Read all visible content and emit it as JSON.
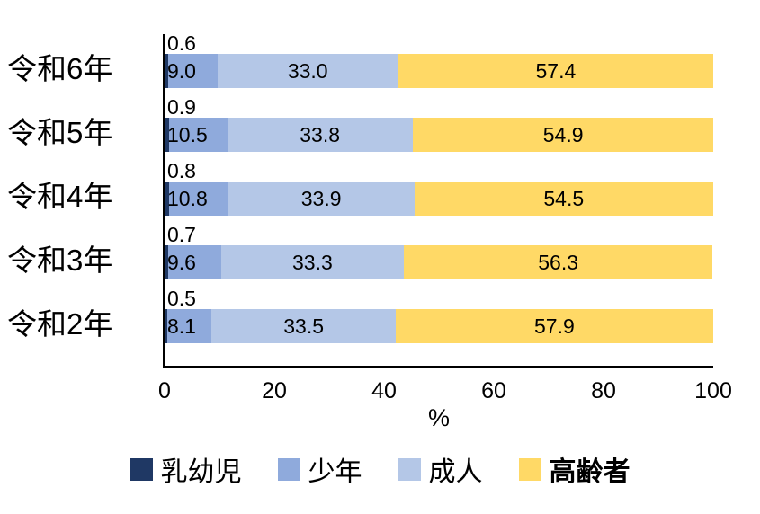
{
  "chart_data": {
    "type": "bar",
    "orientation": "horizontal-stacked",
    "title": "",
    "categories": [
      "令和6年",
      "令和5年",
      "令和4年",
      "令和3年",
      "令和2年"
    ],
    "series": [
      {
        "name": "乳幼児",
        "color": "#1F3864",
        "values": [
          0.6,
          0.9,
          0.8,
          0.7,
          0.5
        ],
        "legend_bold": false
      },
      {
        "name": "少年",
        "color": "#8FAADC",
        "values": [
          9.0,
          10.5,
          10.8,
          9.6,
          8.1
        ],
        "legend_bold": false
      },
      {
        "name": "成人",
        "color": "#B4C7E7",
        "values": [
          33.0,
          33.8,
          33.9,
          33.3,
          33.5
        ],
        "legend_bold": false
      },
      {
        "name": "高齢者",
        "color": "#FFD966",
        "values": [
          57.4,
          54.9,
          54.5,
          56.3,
          57.9
        ],
        "legend_bold": true
      }
    ],
    "xlabel": "%",
    "x_ticks": [
      0,
      20,
      40,
      60,
      80,
      100
    ],
    "xlim": [
      0,
      100
    ],
    "value_decimals": 1,
    "legend_position": "bottom",
    "grid": false,
    "axis_color": "#000000"
  }
}
